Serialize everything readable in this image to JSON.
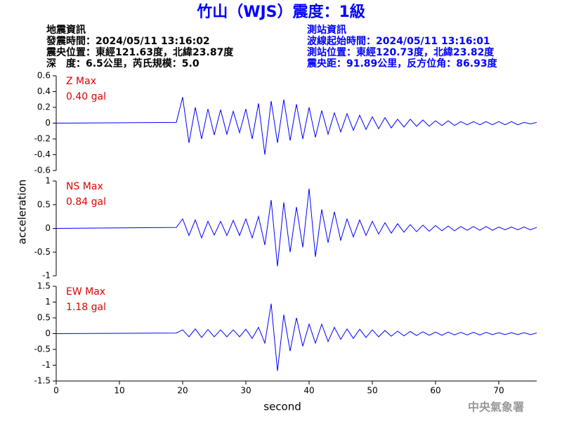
{
  "header": {
    "title": "竹山（WJS）震度：1級",
    "left": [
      "地震資訊",
      "發震時間：2024/05/11 13:16:02",
      "震央位置：東經121.63度，北緯23.87度",
      "深　度：6.5公里，芮氏規模：5.0"
    ],
    "right": [
      "測站資訊",
      "波線起始時間：2024/05/11 13:16:01",
      "測站位置：東經120.73度，北緯23.82度",
      "震央距：91.89公里，反方位角：86.93度"
    ],
    "footer": "中央氣象署"
  },
  "chart_data": {
    "type": "line",
    "xlabel": "second",
    "ylabel": "acceleration",
    "color": "#0000ff",
    "xlim": [
      0,
      76
    ],
    "xticks": [
      0,
      10,
      20,
      30,
      40,
      50,
      60,
      70
    ],
    "x": [
      0,
      19,
      20,
      21,
      22,
      23,
      24,
      25,
      26,
      27,
      28,
      29,
      30,
      31,
      32,
      33,
      34,
      35,
      36,
      37,
      38,
      39,
      40,
      41,
      42,
      43,
      44,
      45,
      46,
      47,
      48,
      49,
      50,
      51,
      52,
      53,
      54,
      55,
      56,
      57,
      58,
      59,
      60,
      61,
      62,
      63,
      64,
      65,
      66,
      67,
      68,
      69,
      70,
      71,
      72,
      73,
      74,
      75,
      76
    ],
    "series": [
      {
        "name": "Z Max",
        "annotation": "0.40 gal",
        "ylim": [
          -0.6,
          0.6
        ],
        "yticks": [
          -0.6,
          -0.4,
          -0.2,
          0,
          0.2,
          0.4,
          0.6
        ],
        "values": [
          0,
          0.01,
          0.33,
          -0.25,
          0.2,
          -0.2,
          0.18,
          -0.15,
          0.17,
          -0.14,
          0.15,
          -0.12,
          0.18,
          -0.2,
          0.25,
          -0.4,
          0.28,
          -0.25,
          0.3,
          -0.22,
          0.24,
          -0.2,
          0.2,
          -0.18,
          0.16,
          -0.14,
          0.13,
          -0.11,
          0.12,
          -0.09,
          0.1,
          -0.08,
          0.08,
          -0.07,
          0.07,
          -0.06,
          0.05,
          -0.05,
          0.05,
          -0.04,
          0.04,
          -0.04,
          0.03,
          -0.03,
          0.03,
          -0.03,
          0.02,
          -0.02,
          0.02,
          -0.02,
          0.02,
          -0.02,
          0.02,
          -0.02,
          0.02,
          -0.02,
          0.01,
          -0.01,
          0.01
        ]
      },
      {
        "name": "NS Max",
        "annotation": "0.84 gal",
        "ylim": [
          -1,
          1
        ],
        "yticks": [
          -1,
          -0.5,
          0,
          0.5,
          1
        ],
        "values": [
          0,
          0.02,
          0.2,
          -0.15,
          0.18,
          -0.2,
          0.15,
          -0.14,
          0.15,
          -0.15,
          0.17,
          -0.15,
          0.2,
          -0.2,
          0.25,
          -0.35,
          0.6,
          -0.8,
          0.55,
          -0.5,
          0.45,
          -0.4,
          0.84,
          -0.6,
          0.4,
          -0.3,
          0.35,
          -0.25,
          0.2,
          -0.18,
          0.18,
          -0.15,
          0.15,
          -0.12,
          0.12,
          -0.1,
          0.1,
          -0.08,
          0.08,
          -0.07,
          0.07,
          -0.06,
          0.06,
          -0.05,
          0.05,
          -0.05,
          0.04,
          -0.04,
          0.04,
          -0.04,
          0.04,
          -0.04,
          0.03,
          -0.03,
          0.03,
          -0.03,
          0.03,
          -0.03,
          0.02
        ]
      },
      {
        "name": "EW Max",
        "annotation": "1.18 gal",
        "ylim": [
          -1.5,
          1.5
        ],
        "yticks": [
          -1.5,
          -1,
          -0.5,
          0,
          0.5,
          1,
          1.5
        ],
        "values": [
          0,
          0.02,
          0.12,
          -0.1,
          0.15,
          -0.12,
          0.13,
          -0.1,
          0.12,
          -0.1,
          0.12,
          -0.1,
          0.14,
          -0.15,
          0.2,
          -0.3,
          0.95,
          -1.18,
          0.6,
          -0.55,
          0.5,
          -0.4,
          0.3,
          -0.3,
          0.3,
          -0.25,
          0.2,
          -0.18,
          0.15,
          -0.15,
          0.14,
          -0.12,
          0.12,
          -0.1,
          0.1,
          -0.08,
          0.08,
          -0.07,
          0.07,
          -0.06,
          0.06,
          -0.05,
          0.05,
          -0.05,
          0.05,
          -0.04,
          0.04,
          -0.04,
          0.04,
          -0.04,
          0.04,
          -0.03,
          0.03,
          -0.03,
          0.03,
          -0.03,
          0.03,
          -0.03,
          0.02
        ]
      }
    ]
  }
}
